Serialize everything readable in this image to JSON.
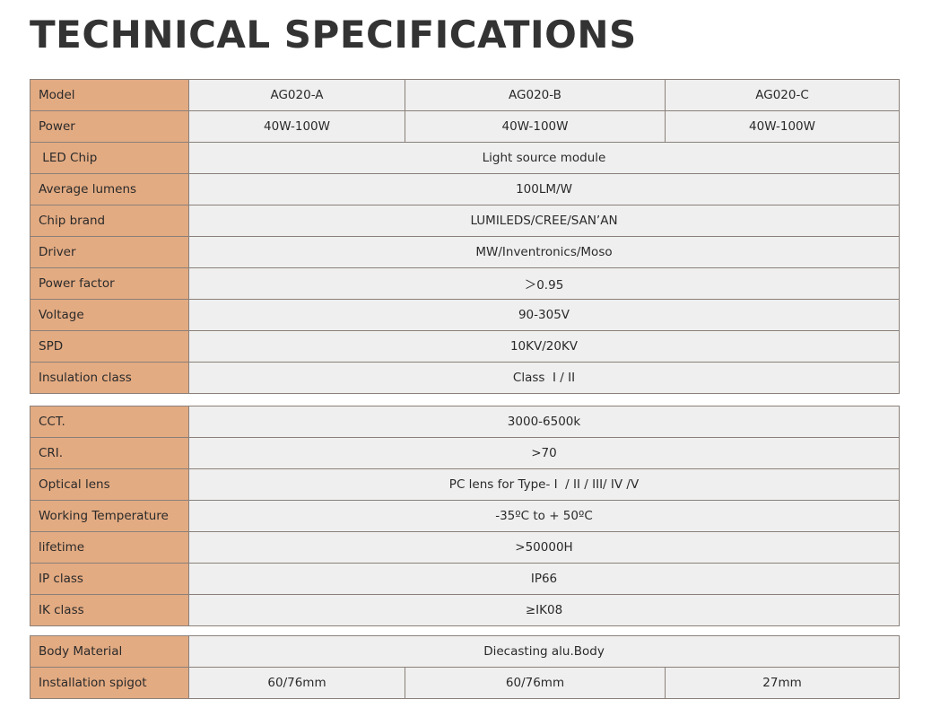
{
  "title": "TECHNICAL SPECIFICATIONS",
  "tables": [
    {
      "rows": [
        {
          "label": "Model",
          "values": [
            "AG020-A",
            "AG020-B",
            "AG020-C"
          ]
        },
        {
          "label": "Power",
          "values": [
            "40W-100W",
            "40W-100W",
            "40W-100W"
          ]
        },
        {
          "label": " LED Chip",
          "values": [
            "Light source module"
          ]
        },
        {
          "label": "Average lumens",
          "values": [
            "100LM/W"
          ]
        },
        {
          "label": "Chip brand",
          "values": [
            "LUMILEDS/CREE/SAN’AN"
          ]
        },
        {
          "label": "Driver",
          "values": [
            "MW/Inventronics/Moso"
          ]
        },
        {
          "label": "Power factor",
          "values": [
            "＞0.95"
          ]
        },
        {
          "label": "Voltage",
          "values": [
            "90-305V"
          ]
        },
        {
          "label": "SPD",
          "values": [
            "10KV/20KV"
          ]
        },
        {
          "label": "Insulation class",
          "values": [
            "Class  I / II"
          ]
        }
      ]
    },
    {
      "rows": [
        {
          "label": "CCT.",
          "values": [
            "3000-6500k"
          ]
        },
        {
          "label": "CRI.",
          "values": [
            ">70"
          ]
        },
        {
          "label": "Optical lens",
          "values": [
            "PC lens for Type- I  / II / III/ IV /V"
          ]
        },
        {
          "label": "Working Temperature",
          "values": [
            "-35ºC to + 50ºC"
          ]
        },
        {
          "label": "lifetime",
          "values": [
            ">50000H"
          ]
        },
        {
          "label": "IP class",
          "values": [
            "IP66"
          ]
        },
        {
          "label": "IK class",
          "values": [
            "≥IK08"
          ]
        }
      ]
    },
    {
      "rows": [
        {
          "label": "Body Material",
          "values": [
            "Diecasting alu.Body"
          ]
        },
        {
          "label": "Installation spigot",
          "values": [
            "60/76mm",
            "60/76mm",
            "27mm"
          ]
        }
      ]
    }
  ]
}
